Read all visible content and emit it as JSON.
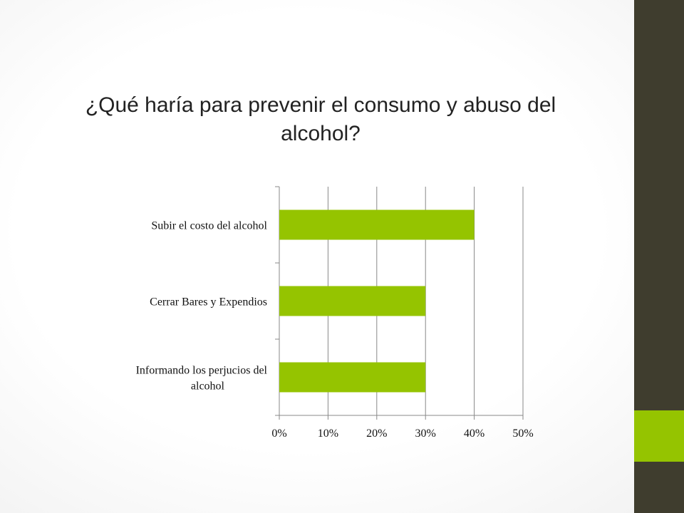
{
  "title": "¿Qué haría para prevenir el consumo y abuso del alcohol?",
  "colors": {
    "bar": "#95c400",
    "sidebar": "#3f3d2e",
    "accent": "#95c400",
    "grid": "#888888"
  },
  "chart_data": {
    "type": "bar",
    "orientation": "horizontal",
    "categories": [
      "Subir el costo del alcohol",
      "Cerrar Bares y Expendios",
      "Informando los perjucios del alcohol"
    ],
    "category_lines": [
      [
        "Subir el costo del alcohol"
      ],
      [
        "Cerrar Bares y Expendios"
      ],
      [
        "Informando los perjucios del",
        "alcohol"
      ]
    ],
    "values": [
      40,
      30,
      30
    ],
    "xlim": [
      0,
      50
    ],
    "ticks": [
      0,
      10,
      20,
      30,
      40,
      50
    ],
    "tick_labels": [
      "0%",
      "10%",
      "20%",
      "30%",
      "40%",
      "50%"
    ],
    "grid": true,
    "legend": false
  }
}
